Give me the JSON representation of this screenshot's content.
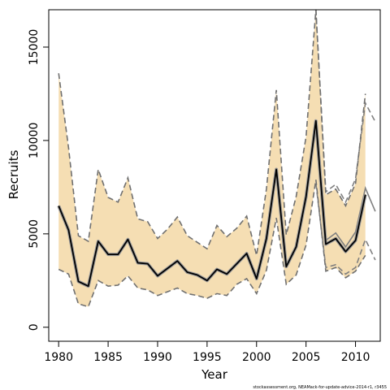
{
  "chart_data": {
    "type": "line",
    "title": "",
    "xlabel": "Year",
    "ylabel": "Recruits",
    "xlim": [
      1979.0,
      2012.5
    ],
    "ylim": [
      -750,
      17000
    ],
    "xticks": [
      1980,
      1985,
      1990,
      1995,
      2000,
      2005,
      2010
    ],
    "yticks": [
      0,
      5000,
      10000,
      15000
    ],
    "grid": false,
    "legend": "none",
    "footnote": "stockassessment.org, NEAMack-for-update-advice-2014-r1, r3455",
    "colors": {
      "band_fill": "#f5deb3",
      "estimate": "#000000",
      "estimate_halo": "#9a9a9a",
      "bounds": "#707070",
      "previous": "#808080"
    },
    "years": [
      1980,
      1981,
      1982,
      1983,
      1984,
      1985,
      1986,
      1987,
      1988,
      1989,
      1990,
      1991,
      1992,
      1993,
      1994,
      1995,
      1996,
      1997,
      1998,
      1999,
      2000,
      2001,
      2002,
      2003,
      2004,
      2005,
      2006,
      2007,
      2008,
      2009,
      2010,
      2011
    ],
    "series": [
      {
        "role": "estimate",
        "values": [
          6500,
          5200,
          2450,
          2200,
          4600,
          3900,
          3900,
          4700,
          3450,
          3400,
          2750,
          3150,
          3550,
          2950,
          2800,
          2500,
          3100,
          2850,
          3400,
          3950,
          2600,
          4750,
          8450,
          3250,
          4300,
          7000,
          11050,
          4450,
          4750,
          4050,
          4650,
          7100
        ]
      },
      {
        "role": "lower",
        "values": [
          3100,
          2850,
          1250,
          1100,
          2500,
          2200,
          2250,
          2750,
          2100,
          2000,
          1700,
          1900,
          2100,
          1800,
          1700,
          1550,
          1800,
          1700,
          2300,
          2600,
          1800,
          3050,
          5850,
          2300,
          2800,
          4400,
          7900,
          3000,
          3200,
          2650,
          3000,
          3850
        ]
      },
      {
        "role": "upper",
        "values": [
          13600,
          9600,
          4900,
          4600,
          8450,
          6950,
          6700,
          8000,
          5800,
          5650,
          4750,
          5250,
          5900,
          4900,
          4550,
          4200,
          5450,
          4850,
          5300,
          5950,
          3850,
          7400,
          12700,
          4950,
          7000,
          10200,
          17000,
          7100,
          7400,
          6500,
          7700,
          12500
        ]
      },
      {
        "role": "previous",
        "years": [
          2005,
          2006,
          2007,
          2008,
          2009,
          2010,
          2011,
          2012
        ],
        "values": [
          6900,
          10800,
          4650,
          5050,
          4300,
          5100,
          7450,
          6200
        ]
      },
      {
        "role": "previous-lower",
        "years": [
          2006,
          2007,
          2008,
          2009,
          2010,
          2011,
          2012
        ],
        "values": [
          7700,
          3200,
          3350,
          2850,
          3200,
          4700,
          3600
        ]
      },
      {
        "role": "previous-upper",
        "years": [
          2006,
          2007,
          2008,
          2009,
          2010,
          2011,
          2012
        ],
        "values": [
          17000,
          7250,
          7650,
          6700,
          7950,
          12000,
          11000
        ]
      }
    ]
  }
}
